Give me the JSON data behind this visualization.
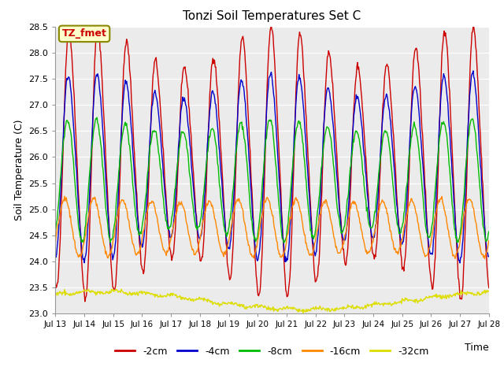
{
  "title": "Tonzi Soil Temperatures Set C",
  "xlabel": "Time",
  "ylabel": "Soil Temperature (C)",
  "ylim": [
    23.0,
    28.5
  ],
  "series_colors": {
    "-2cm": "#cc0000",
    "-4cm": "#0000cc",
    "-8cm": "#00bb00",
    "-16cm": "#ff8800",
    "-32cm": "#dddd00"
  },
  "annotation_text": "TZ_fmet",
  "annotation_bg": "#ffffcc",
  "annotation_border": "#888800",
  "plot_bg": "#ebebeb",
  "fig_bg": "#ffffff",
  "tick_labels": [
    "Jul 13",
    "Jul 14",
    "Jul 15",
    "Jul 16",
    "Jul 17",
    "Jul 18",
    "Jul 19",
    "Jul 20",
    "Jul 21",
    "Jul 22",
    "Jul 23",
    "Jul 24",
    "Jul 25",
    "Jul 26",
    "Jul 27",
    "Jul 28"
  ],
  "ytick_labels": [
    "23.0",
    "23.5",
    "24.0",
    "24.5",
    "25.0",
    "25.5",
    "26.0",
    "26.5",
    "27.0",
    "27.5",
    "28.0",
    "28.5"
  ],
  "ytick_vals": [
    23.0,
    23.5,
    24.0,
    24.5,
    25.0,
    25.5,
    26.0,
    26.5,
    27.0,
    27.5,
    28.0,
    28.5
  ],
  "n_points": 720
}
